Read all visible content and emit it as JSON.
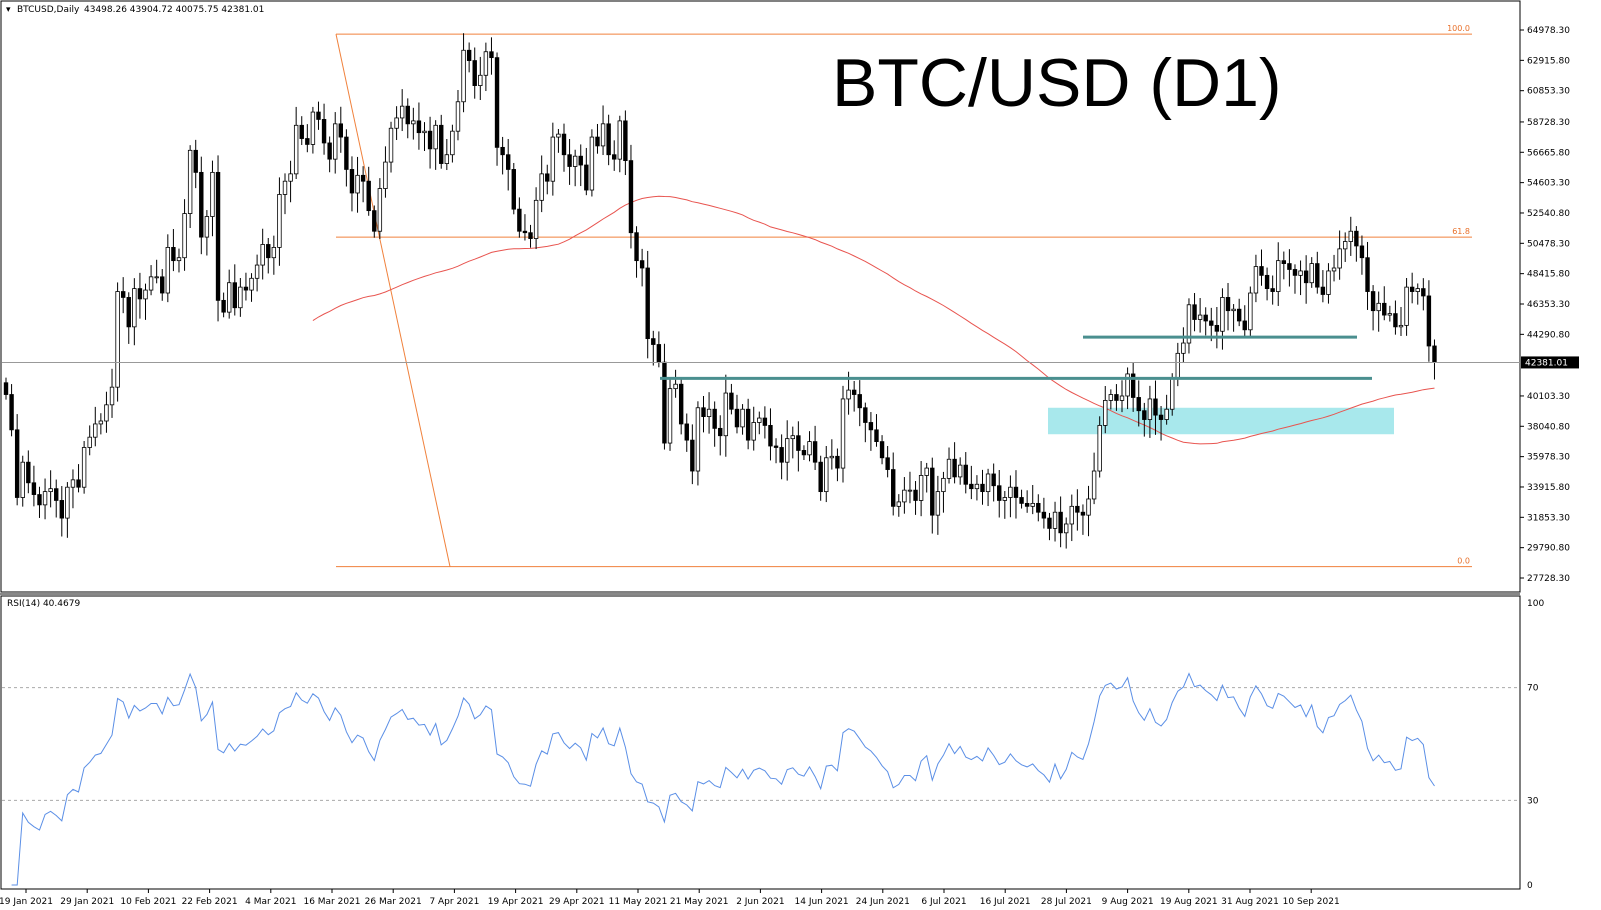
{
  "header": {
    "symbol": "BTCUSD,Daily",
    "ohlc": "43498.26 43904.72 40075.75 42381.01"
  },
  "title": "BTC/USD (D1)",
  "rsi_header": "RSI(14) 40.4679",
  "colors": {
    "bull_body": "#ffffff",
    "bear_body": "#000000",
    "wick": "#000000",
    "ma_line": "#e8544f",
    "fib": "#f0813c",
    "support_line": "#4a8f8f",
    "zone": "#a8e8ec",
    "rsi_line": "#5b8fe6",
    "last_price_bg": "#000000"
  },
  "chart_data": [
    {
      "type": "candlestick",
      "symbol": "BTCUSD",
      "timeframe": "Daily",
      "y_axis_ticks": [
        "64978.30",
        "62915.80",
        "60853.30",
        "58728.30",
        "56665.80",
        "54603.30",
        "52540.80",
        "50478.30",
        "48415.80",
        "46353.30",
        "44290.80",
        "42381.01",
        "40103.30",
        "38040.80",
        "35978.30",
        "33915.80",
        "31853.30",
        "29790.80",
        "27728.30"
      ],
      "last_price": "42381.01",
      "ylim": [
        27728.3,
        64978.3
      ],
      "x_tick_labels": [
        "19 Jan 2021",
        "29 Jan 2021",
        "10 Feb 2021",
        "22 Feb 2021",
        "4 Mar 2021",
        "16 Mar 2021",
        "26 Mar 2021",
        "7 Apr 2021",
        "19 Apr 2021",
        "29 Apr 2021",
        "11 May 2021",
        "21 May 2021",
        "2 Jun 2021",
        "14 Jun 2021",
        "24 Jun 2021",
        "6 Jul 2021",
        "16 Jul 2021",
        "28 Jul 2021",
        "9 Aug 2021",
        "19 Aug 2021",
        "31 Aug 2021",
        "10 Sep 2021"
      ],
      "fibonacci": [
        {
          "label": "100.0",
          "price": 64700
        },
        {
          "label": "61.8",
          "price": 50900
        },
        {
          "label": "0.0",
          "price": 28500
        }
      ],
      "support_levels": [
        44100,
        41300
      ],
      "support_zone": [
        37500,
        39300
      ],
      "close_series": [
        40200,
        37800,
        33200,
        35600,
        34200,
        33400,
        32700,
        33600,
        33800,
        33000,
        31800,
        33900,
        34400,
        33900,
        36600,
        37300,
        38200,
        38400,
        39500,
        40700,
        47200,
        46800,
        44800,
        47400,
        46700,
        47300,
        48200,
        48200,
        47100,
        50200,
        49300,
        49500,
        52500,
        56800,
        55300,
        50900,
        52300,
        55300,
        46600,
        45800,
        47800,
        46100,
        47500,
        47300,
        48100,
        49000,
        50400,
        49500,
        50200,
        53800,
        54700,
        55200,
        58500,
        57600,
        57200,
        59400,
        58900,
        57300,
        56200,
        58600,
        57700,
        55500,
        53900,
        55100,
        54700,
        52700,
        51300,
        54200,
        56000,
        58300,
        59000,
        59800,
        58600,
        58800,
        58000,
        58100,
        56900,
        58500,
        55900,
        56500,
        58100,
        60100,
        63600,
        62900,
        61200,
        61900,
        63500,
        63100,
        57000,
        56500,
        55500,
        52800,
        51300,
        51200,
        50800,
        53400,
        55200,
        54700,
        57700,
        57900,
        56500,
        55700,
        56400,
        55800,
        54100,
        57700,
        57100,
        58600,
        56500,
        56200,
        58800,
        56100,
        51200,
        49300,
        48800,
        44000,
        43600,
        42400,
        36900,
        40600,
        40900,
        38200,
        37100,
        35000,
        39300,
        38700,
        39200,
        37900,
        37400,
        40300,
        39200,
        38000,
        39200,
        37100,
        38300,
        38600,
        38100,
        36700,
        36600,
        35600,
        37200,
        37400,
        36400,
        36100,
        37000,
        35600,
        33600,
        35900,
        36000,
        35200,
        39900,
        40500,
        40200,
        39300,
        38300,
        37800,
        37000,
        35900,
        35100,
        32600,
        32900,
        33700,
        33700,
        33000,
        34700,
        35200,
        32000,
        33600,
        34500,
        35800,
        34600,
        35400,
        34100,
        33800,
        34100,
        33600,
        34800,
        34000,
        33000,
        33200,
        33900,
        33200,
        32800,
        32600,
        32800,
        32200,
        31800,
        31100,
        32200,
        30800,
        31400,
        32600,
        32200,
        32000,
        33100,
        35000,
        38100,
        39800,
        40200,
        39800,
        40100,
        41600,
        40000,
        39100,
        38500,
        39900,
        38800,
        38500,
        39200,
        41300,
        43000,
        43700,
        46300,
        45300,
        45600,
        45200,
        44900,
        44500,
        46800,
        45900,
        46000,
        45200,
        44600,
        47100,
        48900,
        48300,
        47400,
        47200,
        49300,
        49100,
        48700,
        48300,
        48600,
        47800,
        49100,
        47500,
        47000,
        48600,
        48800,
        50100,
        50600,
        51300,
        50300,
        49500,
        47200,
        45900,
        46400,
        45600,
        45700,
        44800,
        44900,
        47500,
        47200,
        47400,
        46900,
        43500,
        42381
      ]
    },
    {
      "type": "line",
      "indicator": "RSI(14)",
      "value_label": "40.4679",
      "y_axis_ticks": [
        "100",
        "70",
        "30",
        "0"
      ],
      "levels": [
        70,
        30
      ],
      "ylim": [
        0,
        100
      ]
    }
  ]
}
